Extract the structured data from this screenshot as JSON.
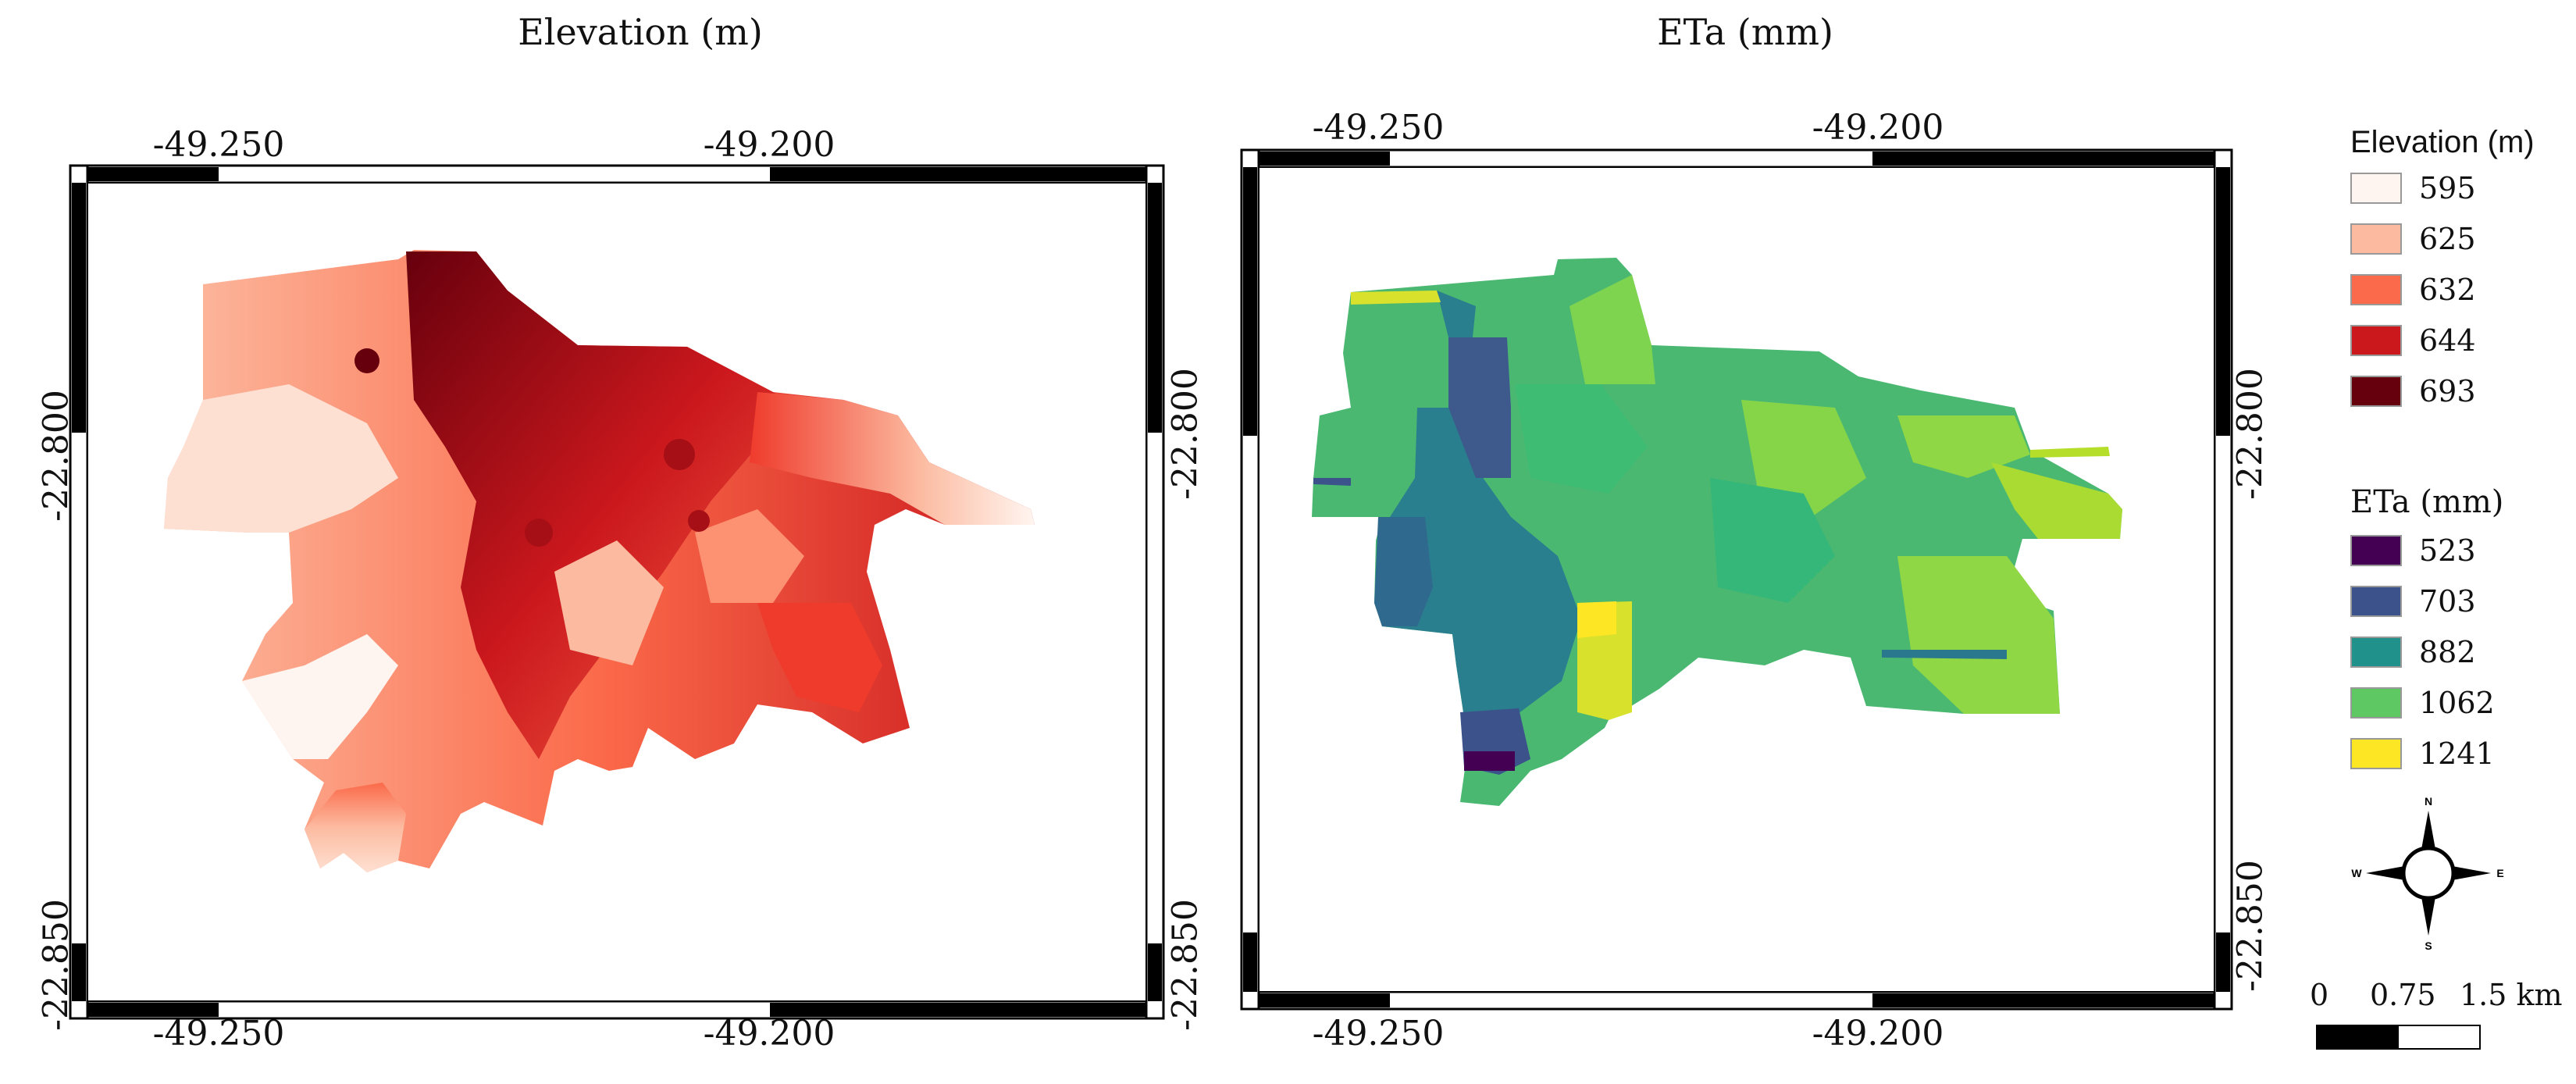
{
  "maps": [
    {
      "title": "Elevation (m)",
      "lon_ticks": [
        "-49.250",
        "-49.200"
      ],
      "lat_ticks": [
        "-22.800",
        "-22.850"
      ]
    },
    {
      "title": "ETa (mm)",
      "lon_ticks": [
        "-49.250",
        "-49.200"
      ],
      "lat_ticks": [
        "-22.800",
        "-22.850"
      ]
    }
  ],
  "legend": {
    "elevation": {
      "title": "Elevation (m)",
      "items": [
        {
          "label": "595",
          "color": "#fff5f0"
        },
        {
          "label": "625",
          "color": "#fcbba1"
        },
        {
          "label": "632",
          "color": "#fb6a4a"
        },
        {
          "label": "644",
          "color": "#cb181d"
        },
        {
          "label": "693",
          "color": "#67000d"
        }
      ]
    },
    "eta": {
      "title": "ETa (mm)",
      "items": [
        {
          "label": "523",
          "color": "#440154"
        },
        {
          "label": "703",
          "color": "#3b528b"
        },
        {
          "label": "882",
          "color": "#21918c"
        },
        {
          "label": "1062",
          "color": "#5ec962"
        },
        {
          "label": "1241",
          "color": "#fde725"
        }
      ]
    }
  },
  "north_arrow": {
    "n": "N",
    "s": "S",
    "e": "E",
    "w": "W"
  },
  "scale_bar": {
    "labels": [
      "0",
      "0.75",
      "1.5 km"
    ]
  }
}
